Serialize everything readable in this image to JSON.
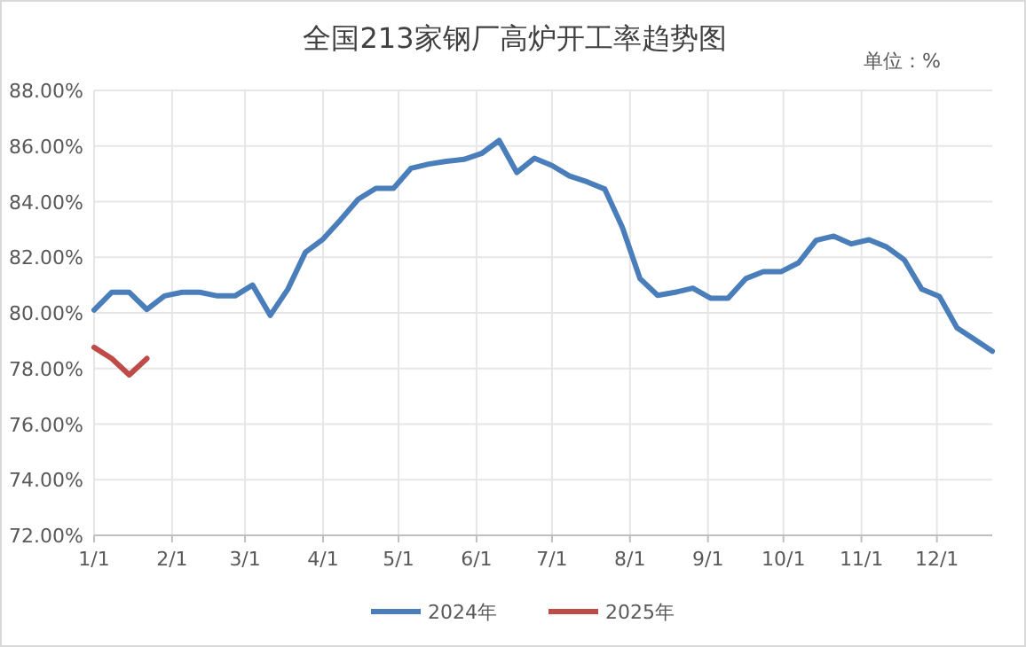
{
  "chart_data": {
    "type": "line",
    "title": "全国213家钢厂高炉开工率趋势图",
    "annotations": [
      "单位：%"
    ],
    "x": [
      "--01-01",
      "--01-08",
      "--01-15",
      "--01-22",
      "--01-29",
      "--02-05",
      "--02-12",
      "--02-19",
      "--02-26",
      "--03-04",
      "--03-11",
      "--03-18",
      "--03-25",
      "--04-01",
      "--04-08",
      "--04-15",
      "--04-22",
      "--04-29",
      "--05-06",
      "--05-13",
      "--05-20",
      "--05-27",
      "--06-03",
      "--06-10",
      "--06-17",
      "--06-24",
      "--07-01",
      "--07-08",
      "--07-15",
      "--07-22",
      "--07-29",
      "--08-05",
      "--08-12",
      "--08-19",
      "--08-26",
      "--09-02",
      "--09-09",
      "--09-16",
      "--09-23",
      "--09-30",
      "--10-07",
      "--10-14",
      "--10-21",
      "--10-28",
      "--11-04",
      "--11-11",
      "--11-18",
      "--11-25",
      "--12-02",
      "--12-09",
      "--12-16",
      "--12-23"
    ],
    "series": [
      {
        "name": "2024年",
        "color": "#4a7ebb",
        "values": [
          80.1,
          80.74,
          80.74,
          80.12,
          80.61,
          80.74,
          80.74,
          80.61,
          80.61,
          81.0,
          79.91,
          80.85,
          82.18,
          82.65,
          83.35,
          84.09,
          84.48,
          84.48,
          85.2,
          85.35,
          85.45,
          85.52,
          85.73,
          86.2,
          85.05,
          85.56,
          85.3,
          84.92,
          84.71,
          84.45,
          83.07,
          81.23,
          80.63,
          80.74,
          80.89,
          80.53,
          80.53,
          81.23,
          81.48,
          81.48,
          81.8,
          82.61,
          82.76,
          82.48,
          82.63,
          82.37,
          81.91,
          80.85,
          80.59,
          79.46,
          79.04,
          78.62
        ]
      },
      {
        "name": "2025年",
        "color": "#be4b48",
        "x": [
          "--01-01",
          "--01-08",
          "--01-15",
          "--01-22"
        ],
        "values": [
          78.76,
          78.36,
          77.77,
          78.36
        ]
      }
    ],
    "xlim": [
      "--01-01",
      "--12-23"
    ],
    "xticks": [
      {
        "value": "--01-01",
        "label": "1/1"
      },
      {
        "value": "--02-01",
        "label": "2/1"
      },
      {
        "value": "--03-01",
        "label": "3/1"
      },
      {
        "value": "--04-01",
        "label": "4/1"
      },
      {
        "value": "--05-01",
        "label": "5/1"
      },
      {
        "value": "--06-01",
        "label": "6/1"
      },
      {
        "value": "--07-01",
        "label": "7/1"
      },
      {
        "value": "--08-01",
        "label": "8/1"
      },
      {
        "value": "--09-01",
        "label": "9/1"
      },
      {
        "value": "--10-01",
        "label": "10/1"
      },
      {
        "value": "--11-01",
        "label": "11/1"
      },
      {
        "value": "--12-01",
        "label": "12/1"
      }
    ],
    "ylim": [
      72,
      88
    ],
    "yticks": [
      {
        "value": 72,
        "label": "72.00%"
      },
      {
        "value": 74,
        "label": "74.00%"
      },
      {
        "value": 76,
        "label": "76.00%"
      },
      {
        "value": 78,
        "label": "78.00%"
      },
      {
        "value": 80,
        "label": "80.00%"
      },
      {
        "value": 82,
        "label": "82.00%"
      },
      {
        "value": 84,
        "label": "84.00%"
      },
      {
        "value": 86,
        "label": "86.00%"
      },
      {
        "value": 88,
        "label": "88.00%"
      }
    ],
    "grid": true,
    "legend": "bottom",
    "marker": "none",
    "line_style": "solid"
  }
}
